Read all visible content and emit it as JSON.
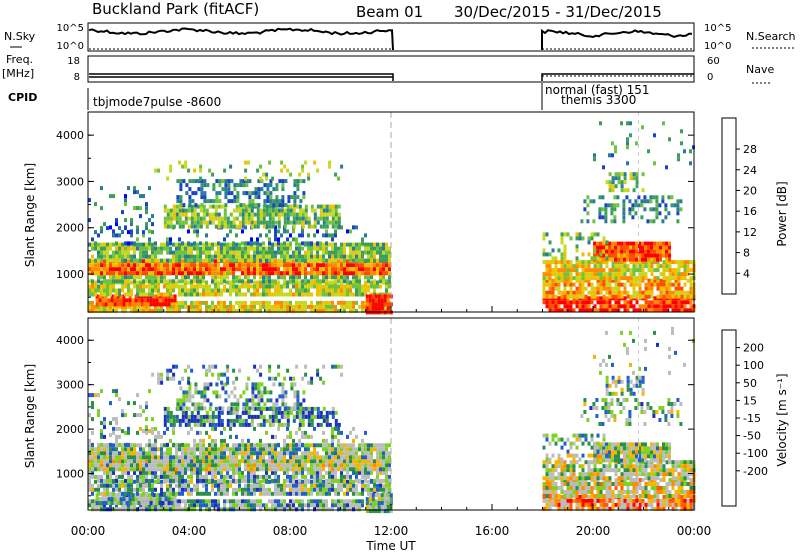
{
  "header": {
    "title": "Buckland Park (fitACF)",
    "beam": "Beam 01",
    "date_range": "30/Dec/2015 - 31/Dec/2015"
  },
  "left_labels": {
    "nsky": "N.Sky",
    "freq": "Freq.",
    "freq_unit": "[MHz]",
    "cpid": "CPID"
  },
  "right_labels": {
    "nsearch": "N.Search",
    "nave": "Nave"
  },
  "noise_panel": {
    "left_ticks": [
      "10^5",
      "10^0"
    ],
    "right_ticks": [
      "10^5",
      "10^0"
    ]
  },
  "freq_panel": {
    "left_ticks": [
      "18",
      "8"
    ],
    "right_ticks": [
      "60",
      "0"
    ]
  },
  "cpid_labels": {
    "first": "tbjmode7pulse -8600",
    "second_top": "normal (fast) 151",
    "second_bottom": "themis 3300"
  },
  "time_axis": {
    "ticks": [
      "00:00",
      "04:00",
      "08:00",
      "12:00",
      "16:00",
      "20:00",
      "00:00"
    ],
    "label": "Time UT"
  },
  "range_axis": {
    "label": "Slant Range [km]",
    "ticks": [
      "1000",
      "2000",
      "3000",
      "4000"
    ]
  },
  "power_colorbar": {
    "label": "Power [dB]",
    "ticks": [
      "4",
      "8",
      "12",
      "16",
      "20",
      "24",
      "28"
    ],
    "colors": [
      "#0000ff",
      "#1a44c8",
      "#2a7a9a",
      "#3d9e5a",
      "#6fc23f",
      "#c8d820",
      "#f2c000",
      "#ff8c00",
      "#ff4d00",
      "#ff0000"
    ]
  },
  "velocity_colorbar": {
    "label": "Velocity [m s⁻¹]",
    "ticks": [
      "200",
      "100",
      "50",
      "15",
      "-15",
      "-50",
      "-100",
      "-200"
    ],
    "colors": [
      "#1c2fbe",
      "#1f5fcf",
      "#2a8f4a",
      "#7ed321",
      "#bcbcbc",
      "#bcbcbc",
      "#f7b500",
      "#ff8c00",
      "#ff5a00",
      "#ff0000"
    ]
  },
  "chart_data": {
    "type": "heatmap",
    "title": "Buckland Park (fitACF)",
    "subtitle": "Beam 01 30/Dec/2015 - 31/Dec/2015",
    "xlabel": "Time UT",
    "ylabel": "Slant Range [km]",
    "x_range_hours": [
      0,
      24
    ],
    "y_range_km": [
      180,
      4500
    ],
    "gaps_hours": [
      [
        12.0,
        18.0
      ]
    ],
    "colors": {
      "power": [
        "#0000ff",
        "#1a44c8",
        "#2a7a9a",
        "#3d9e5a",
        "#6fc23f",
        "#c8d820",
        "#f2c000",
        "#ff8c00",
        "#ff4d00",
        "#ff0000"
      ],
      "velocity": [
        "#1c2fbe",
        "#1f5fcf",
        "#2a8f4a",
        "#7ed321",
        "#bcbcbc",
        "#bcbcbc",
        "#f7b500",
        "#ff8c00",
        "#ff5a00",
        "#ff0000"
      ]
    },
    "bands": [
      {
        "t0": 0.0,
        "t1": 12.0,
        "r0": 180,
        "r1": 420,
        "density": 0.9,
        "power": 0.62,
        "velocity": 0.32
      },
      {
        "t0": 0.3,
        "t1": 3.5,
        "r0": 320,
        "r1": 560,
        "density": 0.95,
        "power": 0.9,
        "velocity": 0.3
      },
      {
        "t0": 0.0,
        "t1": 12.0,
        "r0": 560,
        "r1": 860,
        "density": 0.85,
        "power": 0.55,
        "velocity": 0.35
      },
      {
        "t0": 0.0,
        "t1": 12.0,
        "r0": 860,
        "r1": 1060,
        "density": 0.75,
        "power": 0.45,
        "velocity": 0.33
      },
      {
        "t0": 0.0,
        "t1": 12.0,
        "r0": 1060,
        "r1": 1320,
        "density": 0.97,
        "power": 0.8,
        "velocity": 0.45
      },
      {
        "t0": 0.0,
        "t1": 12.0,
        "r0": 1320,
        "r1": 1680,
        "density": 0.9,
        "power": 0.45,
        "velocity": 0.42
      },
      {
        "t0": 0.0,
        "t1": 11.0,
        "r0": 1680,
        "r1": 2050,
        "density": 0.25,
        "power": 0.25,
        "velocity": 0.35
      },
      {
        "t0": 3.0,
        "t1": 10.0,
        "r0": 2050,
        "r1": 2500,
        "density": 0.75,
        "power": 0.45,
        "velocity": 0.15
      },
      {
        "t0": 3.5,
        "t1": 8.5,
        "r0": 2500,
        "r1": 3050,
        "density": 0.5,
        "power": 0.28,
        "velocity": 0.3
      },
      {
        "t0": 2.5,
        "t1": 10.0,
        "r0": 3050,
        "r1": 3450,
        "density": 0.2,
        "power": 0.45,
        "velocity": 0.3
      },
      {
        "t0": 0.0,
        "t1": 2.5,
        "r0": 1900,
        "r1": 2900,
        "density": 0.18,
        "power": 0.25,
        "velocity": 0.35
      },
      {
        "t0": 11.0,
        "t1": 12.0,
        "r0": 180,
        "r1": 560,
        "density": 0.9,
        "power": 0.95,
        "velocity": 0.4
      },
      {
        "t0": 18.0,
        "t1": 24.0,
        "r0": 180,
        "r1": 520,
        "density": 0.9,
        "power": 0.92,
        "velocity": 0.72
      },
      {
        "t0": 18.0,
        "t1": 24.0,
        "r0": 520,
        "r1": 900,
        "density": 0.8,
        "power": 0.7,
        "velocity": 0.55
      },
      {
        "t0": 18.0,
        "t1": 24.0,
        "r0": 900,
        "r1": 1300,
        "density": 0.85,
        "power": 0.6,
        "velocity": 0.48
      },
      {
        "t0": 20.0,
        "t1": 23.0,
        "r0": 1300,
        "r1": 1700,
        "density": 0.95,
        "power": 0.85,
        "velocity": 0.45
      },
      {
        "t0": 18.0,
        "t1": 20.5,
        "r0": 1300,
        "r1": 1900,
        "density": 0.35,
        "power": 0.45,
        "velocity": 0.4
      },
      {
        "t0": 19.5,
        "t1": 23.5,
        "r0": 2100,
        "r1": 2700,
        "density": 0.35,
        "power": 0.3,
        "velocity": 0.35
      },
      {
        "t0": 20.5,
        "t1": 22.0,
        "r0": 2800,
        "r1": 3200,
        "density": 0.5,
        "power": 0.45,
        "velocity": 0.4
      },
      {
        "t0": 20.0,
        "t1": 24.0,
        "r0": 3300,
        "r1": 4300,
        "density": 0.08,
        "power": 0.3,
        "velocity": 0.35
      }
    ]
  }
}
